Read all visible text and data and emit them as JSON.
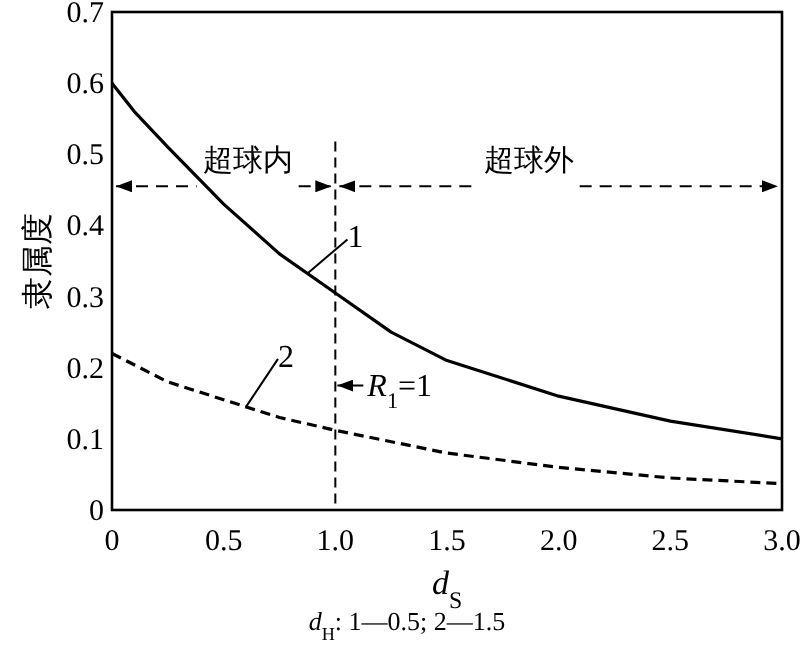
{
  "chart_data": {
    "type": "line",
    "xlabel": "*d*$_{S}$",
    "ylabel": "隶属度",
    "xlim": [
      0,
      3
    ],
    "ylim": [
      0,
      0.7
    ],
    "xticks": [
      0,
      0.5,
      {
        "value": 1,
        "label": "1.0"
      },
      1.5,
      {
        "value": 2,
        "label": "2.0"
      },
      2.5,
      {
        "value": 3,
        "label": "3.0"
      }
    ],
    "yticks": [
      0,
      0.1,
      0.2,
      0.3,
      0.4,
      0.5,
      0.6,
      0.7
    ],
    "series": [
      {
        "name": "1",
        "color": "#000000",
        "line_style": "solid",
        "x": [
          0,
          0.1,
          0.25,
          0.5,
          0.75,
          1,
          1.25,
          1.5,
          2,
          2.5,
          3
        ],
        "values": [
          0.6,
          0.56,
          0.51,
          0.43,
          0.36,
          0.305,
          0.25,
          0.21,
          0.16,
          0.125,
          0.1
        ]
      },
      {
        "name": "2",
        "color": "#000000",
        "line_style": "dashed",
        "x": [
          0,
          0.25,
          0.5,
          0.75,
          1,
          1.5,
          2,
          2.5,
          3
        ],
        "values": [
          0.22,
          0.18,
          0.155,
          0.13,
          0.112,
          0.08,
          0.06,
          0.045,
          0.037
        ]
      }
    ],
    "ref_lines": [
      {
        "axis": "x",
        "value": 1,
        "label": "*R*$_{1}$=1",
        "line_style": "dashed",
        "color": "#000000"
      }
    ],
    "annotations": [
      "*d*$_{H}$: 1—0.5; 2—1.5",
      {
        "text": "超球内",
        "x": 1,
        "y": 0.455
      },
      {
        "text": "超球外",
        "x": 1,
        "y": 0.455
      }
    ],
    "grid": false
  }
}
